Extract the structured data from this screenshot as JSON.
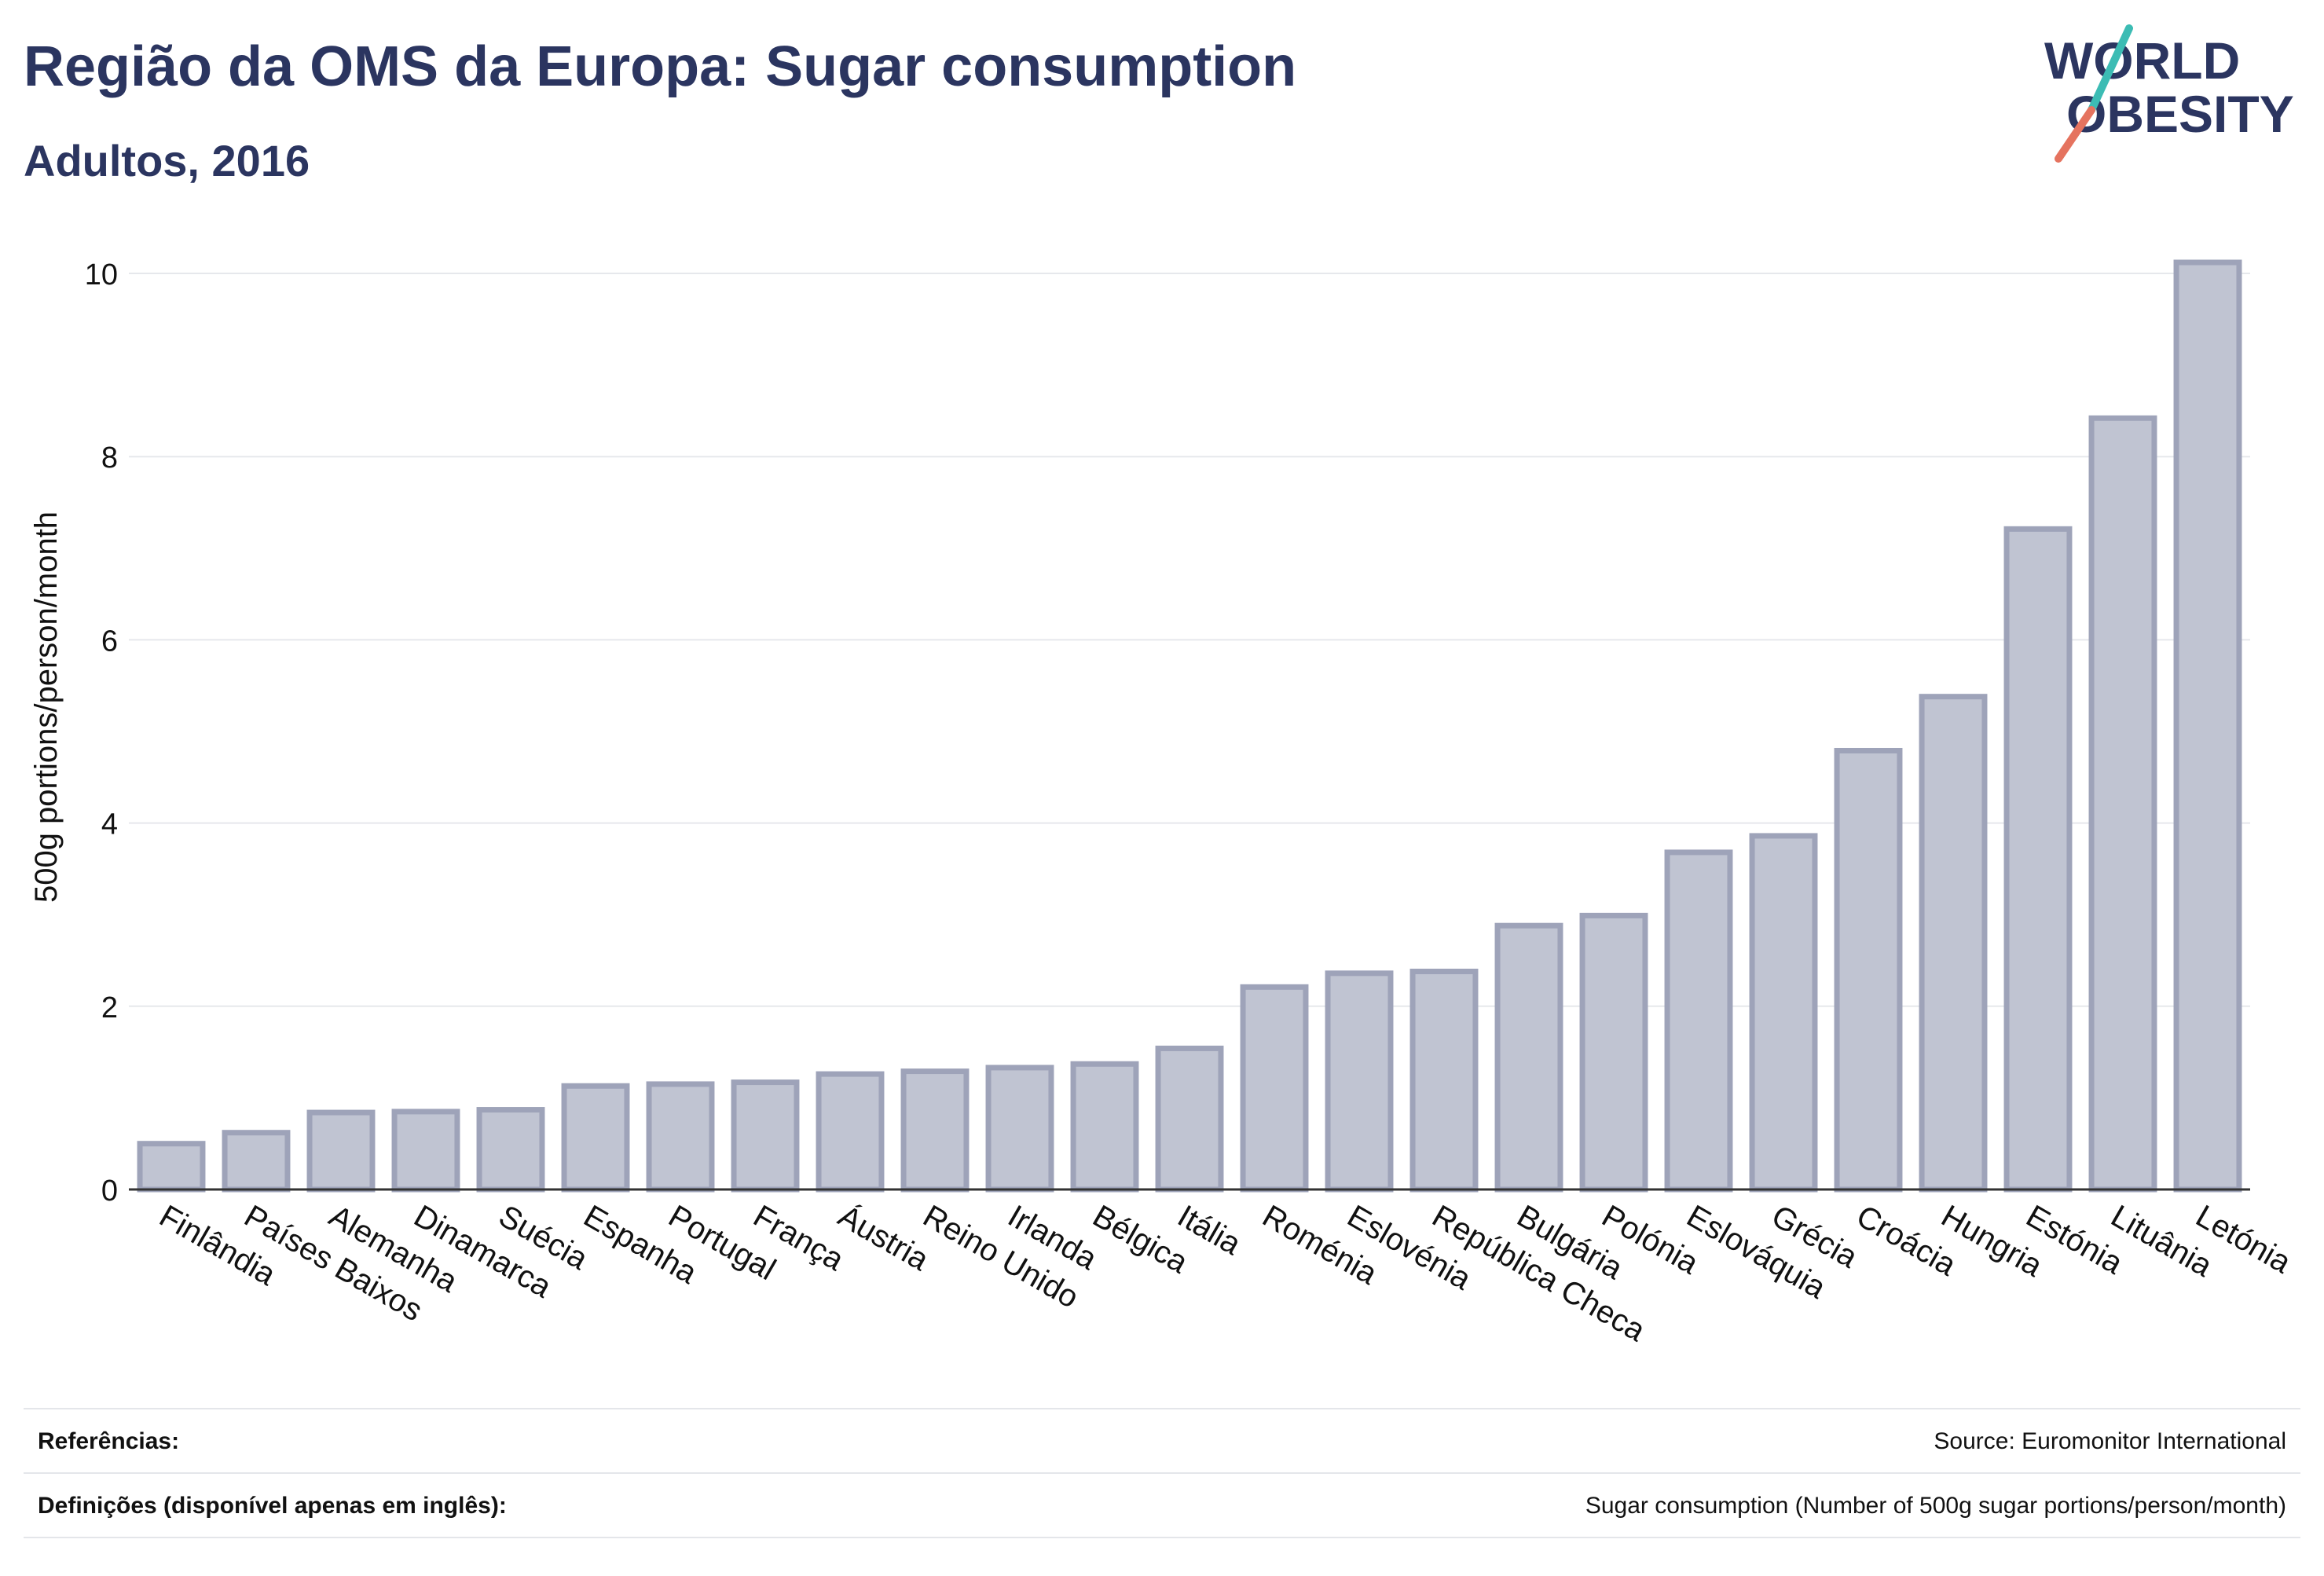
{
  "title": "Região da OMS da Europa: Sugar consumption",
  "subtitle": "Adultos, 2016",
  "logo": {
    "line1": "WORLD",
    "line2": "OBESITY",
    "brand_color": "#2b3560",
    "accent_teal": "#3cbcb4",
    "accent_red": "#e5735f"
  },
  "colors": {
    "bar_fill": "#c0c4d2",
    "bar_stroke": "#9ea3b9",
    "grid": "#e6e8ec",
    "axis": "#333333"
  },
  "chart_data": {
    "type": "bar",
    "title": "Região da OMS da Europa: Sugar consumption",
    "subtitle": "Adultos, 2016",
    "xlabel": "",
    "ylabel": "500g portions/person/month",
    "ylim": [
      0,
      10.5
    ],
    "yticks": [
      0,
      2,
      4,
      6,
      8,
      10
    ],
    "grid": true,
    "categories": [
      "Finlândia",
      "Países Baixos",
      "Alemanha",
      "Dinamarca",
      "Suécia",
      "Espanha",
      "Portugal",
      "França",
      "Áustria",
      "Reino Unido",
      "Irlanda",
      "Bélgica",
      "Itália",
      "Roménia",
      "Eslovénia",
      "República Checa",
      "Bulgária",
      "Polónia",
      "Eslováquia",
      "Grécia",
      "Croácia",
      "Hungria",
      "Estónia",
      "Lituânia",
      "Letónia"
    ],
    "values": [
      0.5,
      0.62,
      0.84,
      0.85,
      0.87,
      1.13,
      1.15,
      1.17,
      1.26,
      1.29,
      1.33,
      1.37,
      1.54,
      2.21,
      2.36,
      2.38,
      2.88,
      2.99,
      3.68,
      3.86,
      4.79,
      5.38,
      7.21,
      8.42,
      10.12
    ]
  },
  "footer": {
    "references_label": "Referências:",
    "references_value": "Source: Euromonitor International",
    "definitions_label": "Definições (disponível apenas em inglês):",
    "definitions_value": "Sugar consumption (Number of 500g sugar portions/person/month)"
  }
}
